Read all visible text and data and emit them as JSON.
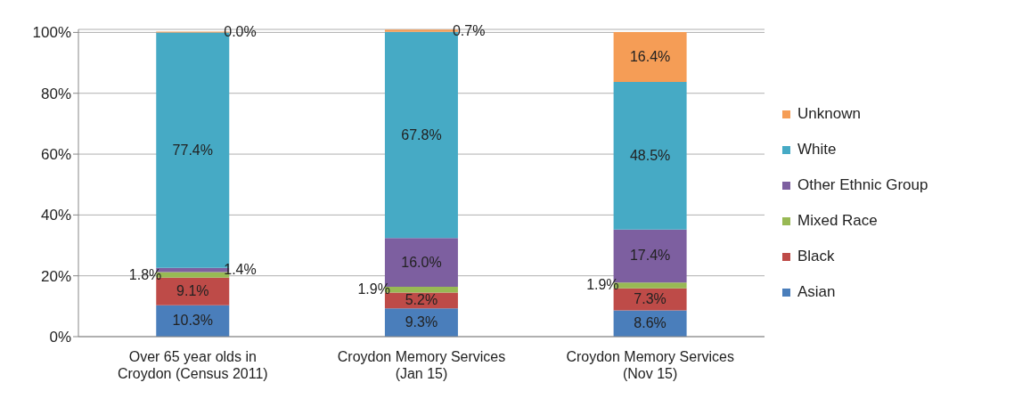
{
  "chart_data": {
    "type": "bar",
    "stacked": true,
    "categories": [
      "Over 65 year olds in Croydon (Census 2011)",
      "Croydon Memory Services (Jan 15)",
      "Croydon Memory Services (Nov 15)"
    ],
    "series": [
      {
        "name": "Asian",
        "color": "#4a7ebb",
        "values": [
          10.3,
          9.3,
          8.6
        ],
        "value_labels": [
          "10.3%",
          "9.3%",
          "8.6%"
        ]
      },
      {
        "name": "Black",
        "color": "#be4b48",
        "values": [
          9.1,
          5.2,
          7.3
        ],
        "value_labels": [
          "9.1%",
          "5.2%",
          "7.3%"
        ]
      },
      {
        "name": "Mixed Race",
        "color": "#98b954",
        "values": [
          1.8,
          1.9,
          1.9
        ],
        "value_labels": [
          "1.8%",
          "1.9%",
          "1.9%"
        ]
      },
      {
        "name": "Other Ethnic Group",
        "color": "#7d5fa0",
        "values": [
          1.4,
          16.0,
          17.4
        ],
        "value_labels": [
          "1.4%",
          "16.0%",
          "17.4%"
        ]
      },
      {
        "name": "White",
        "color": "#46aac5",
        "values": [
          77.4,
          67.8,
          48.5
        ],
        "value_labels": [
          "77.4%",
          "67.8%",
          "48.5%"
        ]
      },
      {
        "name": "Unknown",
        "color": "#f59d56",
        "values": [
          0.0,
          0.7,
          16.4
        ],
        "value_labels": [
          "0.0%",
          "0.7%",
          "16.4%"
        ]
      }
    ],
    "ylim": [
      0,
      101
    ],
    "yticks": [
      {
        "value": 0,
        "label": "0%"
      },
      {
        "value": 20,
        "label": "20%"
      },
      {
        "value": 40,
        "label": "40%"
      },
      {
        "value": 60,
        "label": "60%"
      },
      {
        "value": 80,
        "label": "80%"
      },
      {
        "value": 100,
        "label": "100%"
      }
    ],
    "grid": "y",
    "legend": "right"
  }
}
